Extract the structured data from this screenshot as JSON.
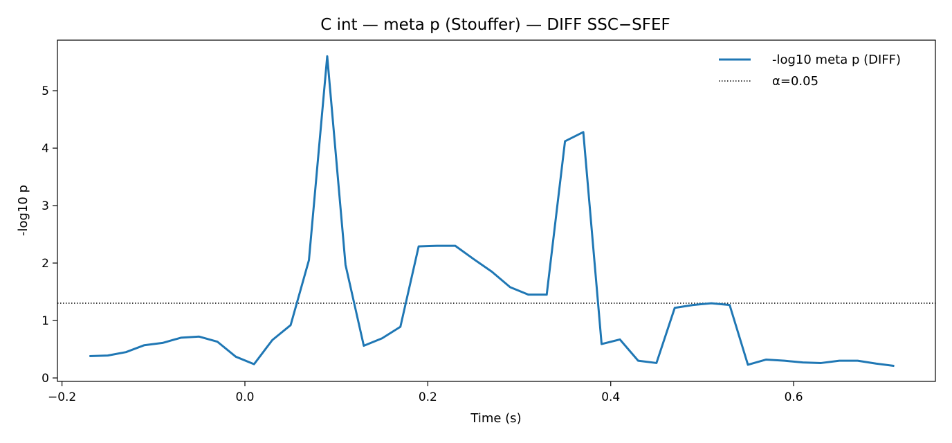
{
  "chart_data": {
    "type": "line",
    "title": "C int — meta p (Stouffer) — DIFF SSC−SFEF",
    "xlabel": "Time (s)",
    "ylabel": "-log10 p",
    "xlim": [
      -0.205,
      0.755
    ],
    "ylim": [
      -0.06,
      5.88
    ],
    "xticks": [
      -0.2,
      0.0,
      0.2,
      0.4,
      0.6
    ],
    "xtick_labels": [
      "−0.2",
      "0.0",
      "0.2",
      "0.4",
      "0.6"
    ],
    "yticks": [
      0,
      1,
      2,
      3,
      4,
      5
    ],
    "ytick_labels": [
      "0",
      "1",
      "2",
      "3",
      "4",
      "5"
    ],
    "grid": false,
    "legend_position": "top-right",
    "series": [
      {
        "name": "-log10 meta p (DIFF)",
        "color": "#1f77b4",
        "x": [
          -0.17,
          -0.15,
          -0.13,
          -0.11,
          -0.09,
          -0.07,
          -0.05,
          -0.03,
          -0.01,
          0.01,
          0.03,
          0.05,
          0.07,
          0.09,
          0.11,
          0.13,
          0.15,
          0.17,
          0.19,
          0.21,
          0.23,
          0.25,
          0.27,
          0.29,
          0.31,
          0.33,
          0.35,
          0.37,
          0.39,
          0.41,
          0.43,
          0.45,
          0.47,
          0.49,
          0.51,
          0.53,
          0.55,
          0.57,
          0.59,
          0.61,
          0.63,
          0.65,
          0.67,
          0.69,
          0.71
        ],
        "y": [
          0.38,
          0.39,
          0.45,
          0.57,
          0.61,
          0.7,
          0.72,
          0.63,
          0.37,
          0.24,
          0.66,
          0.92,
          2.05,
          5.6,
          1.97,
          0.56,
          0.69,
          0.89,
          2.29,
          2.3,
          2.3,
          2.07,
          1.85,
          1.58,
          1.45,
          1.45,
          4.12,
          4.28,
          0.59,
          0.67,
          0.3,
          0.26,
          1.22,
          1.27,
          1.3,
          1.27,
          0.23,
          0.32,
          0.3,
          0.27,
          0.26,
          0.3,
          0.3,
          0.25,
          0.21
        ]
      }
    ],
    "reference_lines": [
      {
        "name": "α=0.05",
        "y": 1.30103,
        "color": "#000000",
        "style": "dotted"
      }
    ]
  }
}
